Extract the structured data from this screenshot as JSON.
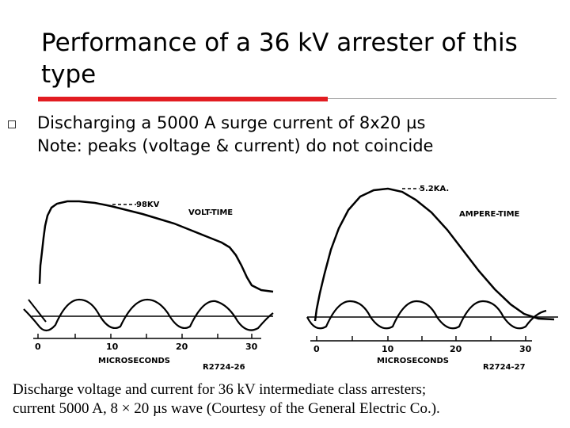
{
  "slide": {
    "title": "Performance of a 36 kV arrester of this type",
    "bullet_line1": "Discharging a 5000 A surge current of 8x20 µs",
    "bullet_line2": "Note: peaks (voltage & current) do not coincide"
  },
  "figure": {
    "left_panel": {
      "title": "VOLT-TIME",
      "peak_label": "98KV",
      "axis_label": "MICROSECONDS",
      "ref_code": "R2724-26",
      "ticks": [
        "0",
        "10",
        "20",
        "30"
      ]
    },
    "right_panel": {
      "title": "AMPERE-TIME",
      "peak_label": "5.2KA.",
      "axis_label": "MICROSECONDS",
      "ref_code": "R2724-27",
      "ticks": [
        "0",
        "10",
        "20",
        "30"
      ]
    }
  },
  "caption": {
    "line1": "Discharge voltage and current for 36 kV intermediate class arresters;",
    "line2": "current 5000 A, 8 × 20 µs wave (Courtesy of the General Electric Co.)."
  },
  "colors": {
    "accent_red": "#e21c21",
    "rule_gray": "#9a9a9a"
  }
}
